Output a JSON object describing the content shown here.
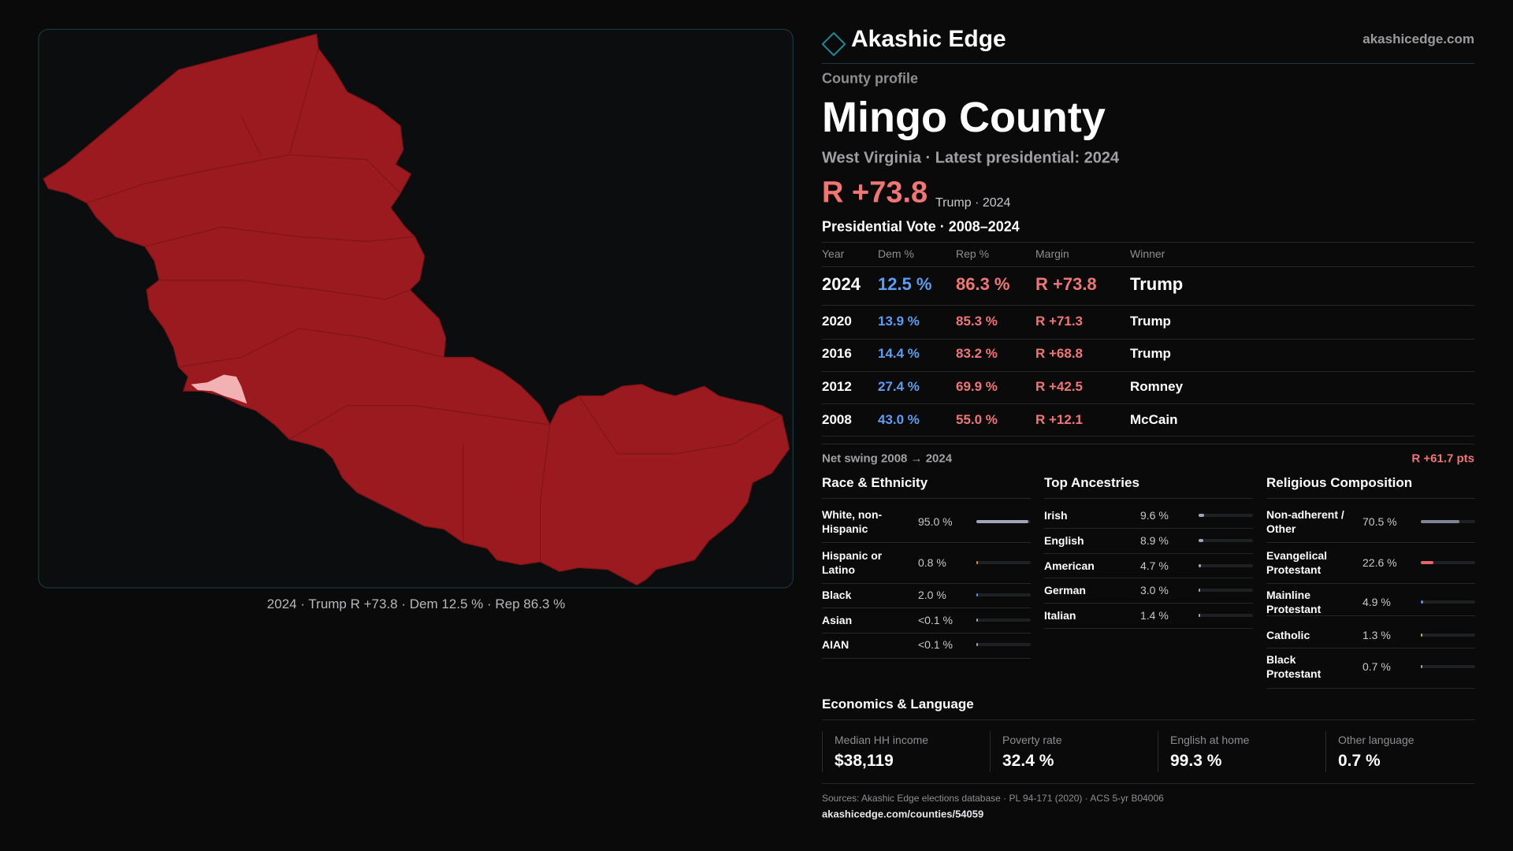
{
  "header": {
    "brand": "Akashic Edge",
    "site": "akashicedge.com"
  },
  "map": {
    "caption": "2024 · Trump R +73.8 · Dem 12.5 % · Rep 86.3 %"
  },
  "profile": {
    "kicker": "County profile",
    "name": "Mingo County",
    "subtitle": "West Virginia · Latest presidential: 2024",
    "margin": "R +73.8",
    "margin_note": "Trump · 2024"
  },
  "vote_table": {
    "title": "Presidential Vote · 2008–2024",
    "columns": [
      "Year",
      "Dem %",
      "Rep %",
      "Margin",
      "Winner"
    ],
    "rows": [
      [
        "2024",
        "12.5 %",
        "86.3 %",
        "R +73.8",
        "Trump"
      ],
      [
        "2020",
        "13.9 %",
        "85.3 %",
        "R +71.3",
        "Trump"
      ],
      [
        "2016",
        "14.4 %",
        "83.2 %",
        "R +68.8",
        "Trump"
      ],
      [
        "2012",
        "27.4 %",
        "69.9 %",
        "R +42.5",
        "Romney"
      ],
      [
        "2008",
        "43.0 %",
        "55.0 %",
        "R +12.1",
        "McCain"
      ]
    ],
    "swing_label": "Net swing 2008 → 2024",
    "swing_value": "R +61.7 pts"
  },
  "demographics": [
    {
      "title": "Race & Ethnicity",
      "rows": [
        {
          "label": "White, non-Hispanic",
          "value": 95.0,
          "value_label": "95.0 %",
          "color": "#9ea6b8"
        },
        {
          "label": "Hispanic or Latino",
          "value": 0.8,
          "value_label": "0.8 %",
          "color": "#d9893a"
        },
        {
          "label": "Black",
          "value": 2.0,
          "value_label": "2.0 %",
          "color": "#5b8fe0"
        },
        {
          "label": "Asian",
          "value": 0.05,
          "value_label": "<0.1 %",
          "color": "#9ea6b8"
        },
        {
          "label": "AIAN",
          "value": 0.05,
          "value_label": "<0.1 %",
          "color": "#9ea6b8"
        }
      ]
    },
    {
      "title": "Top Ancestries",
      "rows": [
        {
          "label": "Irish",
          "value": 9.6,
          "value_label": "9.6 %",
          "color": "#9ea6b8"
        },
        {
          "label": "English",
          "value": 8.9,
          "value_label": "8.9 %",
          "color": "#9ea6b8"
        },
        {
          "label": "American",
          "value": 4.7,
          "value_label": "4.7 %",
          "color": "#9ea6b8"
        },
        {
          "label": "German",
          "value": 3.0,
          "value_label": "3.0 %",
          "color": "#9ea6b8"
        },
        {
          "label": "Italian",
          "value": 1.4,
          "value_label": "1.4 %",
          "color": "#9ea6b8"
        }
      ]
    },
    {
      "title": "Religious Composition",
      "rows": [
        {
          "label": "Non-adherent / Other",
          "value": 70.5,
          "value_label": "70.5 %",
          "color": "#7c8496"
        },
        {
          "label": "Evangelical Protestant",
          "value": 22.6,
          "value_label": "22.6 %",
          "color": "#e0666c"
        },
        {
          "label": "Mainline Protestant",
          "value": 4.9,
          "value_label": "4.9 %",
          "color": "#5b8fe0"
        },
        {
          "label": "Catholic",
          "value": 1.3,
          "value_label": "1.3 %",
          "color": "#c8b24a"
        },
        {
          "label": "Black Protestant",
          "value": 0.7,
          "value_label": "0.7 %",
          "color": "#9ea6b8"
        }
      ]
    }
  ],
  "economics": {
    "title": "Economics & Language",
    "cells": [
      {
        "label": "Median HH income",
        "value": "$38,119"
      },
      {
        "label": "Poverty rate",
        "value": "32.4 %"
      },
      {
        "label": "English at home",
        "value": "99.3 %"
      },
      {
        "label": "Other language",
        "value": "0.7 %"
      }
    ]
  },
  "sources": {
    "text": "Sources: Akashic Edge elections database · PL 94-171 (2020) · ACS 5-yr B04006",
    "url": "akashicedge.com/counties/54059"
  }
}
